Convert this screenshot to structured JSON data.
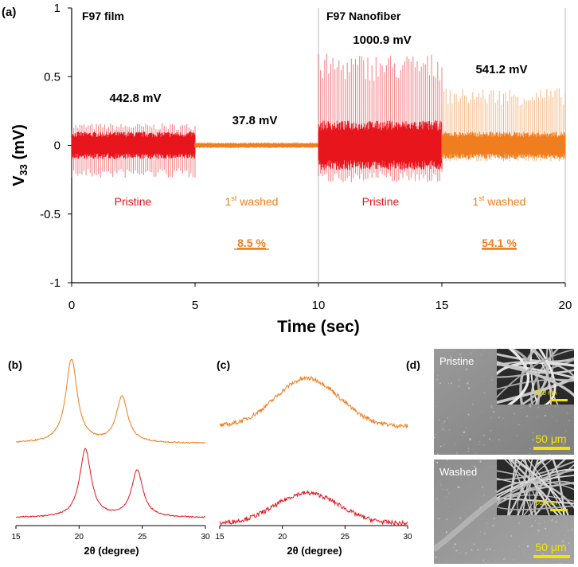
{
  "chart_data": [
    {
      "panel": "(a)",
      "type": "line",
      "xlabel": "Time (sec)",
      "ylabel_main": "V",
      "ylabel_sub": "33",
      "ylabel_unit": " (mV)",
      "xlim": [
        0,
        20
      ],
      "ylim": [
        -1,
        1
      ],
      "xticks": [
        "0",
        "5",
        "10",
        "15",
        "20"
      ],
      "yticks": [
        "1",
        "0.5",
        "0",
        "-0.5",
        "-1"
      ],
      "grid": false,
      "sample_labels": {
        "film": "F97 film",
        "nanofiber": "F97 Nanofiber"
      },
      "series": [
        {
          "name": "F97 film – Pristine",
          "condition": "Pristine",
          "color": "#e8151c",
          "t_range": [
            0,
            5
          ],
          "peak_label": "442.8 mV",
          "max": 0.16,
          "min": -0.24,
          "core": 0.1
        },
        {
          "name": "F97 film – 1st washed",
          "condition": "washed",
          "condition_sup": "st",
          "condition_prefix": "1",
          "color": "#f07d1e",
          "t_range": [
            5,
            10
          ],
          "peak_label": "37.8 mV",
          "max": 0.02,
          "min": -0.02,
          "core": 0.015,
          "retention": "8.5 %"
        },
        {
          "name": "F97 Nanofiber – Pristine",
          "condition": "Pristine",
          "color": "#e8151c",
          "t_range": [
            10,
            15
          ],
          "peak_label": "1000.9 mV",
          "max": 0.67,
          "min": -0.27,
          "core": 0.18
        },
        {
          "name": "F97 Nanofiber – 1st washed",
          "condition": "washed",
          "condition_sup": "st",
          "condition_prefix": "1",
          "color": "#f07d1e",
          "t_range": [
            15,
            20
          ],
          "peak_label": "541.2 mV",
          "max": 0.42,
          "min": -0.12,
          "core": 0.1,
          "retention": "54.1 %"
        }
      ]
    },
    {
      "panel": "(b)",
      "type": "line",
      "xlabel": "2θ (degree)",
      "xlim": [
        15,
        30
      ],
      "xticks": [
        "15",
        "20",
        "25",
        "30"
      ],
      "series": [
        {
          "name": "washed",
          "color": "#f07d1e",
          "peaks": [
            [
              19.4,
              1.0
            ],
            [
              23.4,
              0.55
            ]
          ],
          "baseline": 0.05
        },
        {
          "name": "pristine",
          "color": "#e8151c",
          "peaks": [
            [
              20.5,
              0.9
            ],
            [
              24.6,
              0.62
            ]
          ],
          "baseline": 0.05
        }
      ]
    },
    {
      "panel": "(c)",
      "type": "line",
      "xlabel": "2θ (degree)",
      "xlim": [
        15,
        30
      ],
      "xticks": [
        "15",
        "20",
        "25",
        "30"
      ],
      "series": [
        {
          "name": "washed",
          "color": "#f07d1e",
          "broad_peak": [
            22.0,
            0.55
          ]
        },
        {
          "name": "pristine",
          "color": "#e8151c",
          "broad_peak": [
            22.0,
            0.35
          ]
        }
      ]
    }
  ],
  "panel_d": {
    "label": "(d)",
    "images": [
      {
        "title": "Pristine",
        "inset_scale": "500 nm",
        "scale": "50 μm"
      },
      {
        "title": "Washed",
        "inset_scale": "500 nm",
        "scale": "50 μm"
      }
    ]
  },
  "colors": {
    "pristine": "#e8151c",
    "washed": "#f07d1e",
    "axis": "#000000"
  }
}
